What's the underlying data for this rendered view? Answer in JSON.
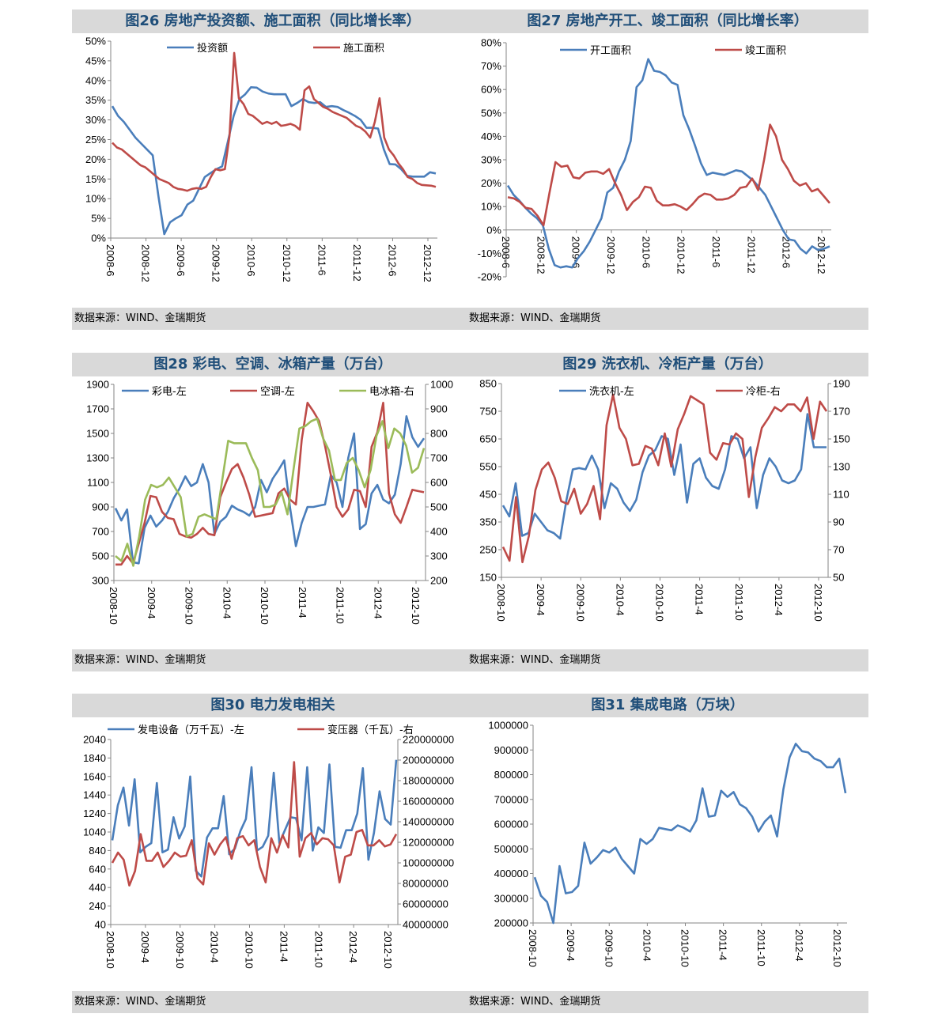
{
  "source_text": "数据来源：WIND、金瑞期货",
  "chart_data": [
    {
      "type": "line",
      "title": "图26 房地产投资额、施工面积（同比增长率）",
      "x_labels": [
        "2008-6",
        "2008-12",
        "2009-6",
        "2009-12",
        "2010-6",
        "2010-12",
        "2011-6",
        "2011-12",
        "2012-6",
        "2012-12"
      ],
      "y_ticks": [
        "0%",
        "5%",
        "10%",
        "15%",
        "20%",
        "25%",
        "30%",
        "35%",
        "40%",
        "45%",
        "50%"
      ],
      "ylim": [
        0,
        50
      ],
      "series": [
        {
          "name": "投资额",
          "color": "#4a7ebb",
          "axis": "left",
          "values": [
            33.5,
            31,
            29.5,
            27.5,
            25.5,
            24,
            22.5,
            21,
            10.5,
            1,
            4,
            5,
            5.8,
            8.5,
            9.5,
            12.5,
            15.5,
            16.5,
            17.5,
            18.2,
            24.5,
            31,
            35.3,
            36.5,
            38.3,
            38.2,
            37.2,
            36.7,
            36.5,
            36.5,
            36.5,
            33.5,
            34.3,
            35.3,
            34.5,
            34.3,
            34.5,
            33.3,
            33.5,
            33.3,
            32.5,
            31.8,
            31,
            30,
            28,
            28,
            27.8,
            22.5,
            18.8,
            18.7,
            17.5,
            15.8,
            15.6,
            15.6,
            15.6,
            16.7,
            16.4
          ]
        },
        {
          "name": "施工面积",
          "color": "#be4b48",
          "axis": "left",
          "values": [
            24.2,
            23,
            22.5,
            21.5,
            20.5,
            19.5,
            18.5,
            18,
            17,
            16,
            15,
            14.5,
            14,
            13,
            12.5,
            12.3,
            12,
            12.5,
            12.7,
            12.5,
            13,
            15.5,
            17.5,
            17.2,
            17.5,
            26,
            47,
            35.5,
            34,
            31.5,
            31,
            30,
            29,
            29.5,
            29,
            29.5,
            28.5,
            28.7,
            29,
            28.5,
            27.5,
            37.5,
            38.5,
            35.3,
            34.3,
            33.3,
            32.8,
            32,
            31.5,
            31,
            30.5,
            29.5,
            28.5,
            28,
            27,
            25.5,
            29.5,
            35.5,
            25.5,
            22.5,
            21,
            19,
            17.5,
            15.5,
            15,
            14,
            13.5,
            13.4,
            13.3,
            13
          ]
        }
      ],
      "legend_position": "top"
    },
    {
      "type": "line",
      "title": "图27 房地产开工、竣工面积（同比增长率）",
      "x_labels": [
        "2008-6",
        "2008-12",
        "2009-6",
        "2009-12",
        "2010-6",
        "2010-12",
        "2011-6",
        "2011-12",
        "2012-6",
        "2012-12"
      ],
      "y_ticks": [
        "-20%",
        "-10%",
        "0%",
        "10%",
        "20%",
        "30%",
        "40%",
        "50%",
        "60%",
        "70%",
        "80%"
      ],
      "ylim": [
        -20,
        80
      ],
      "series": [
        {
          "name": "开工面积",
          "color": "#4a7ebb",
          "axis": "left",
          "values": [
            19,
            15,
            12.5,
            9.5,
            7,
            5,
            2,
            -8,
            -15,
            -16,
            -15.5,
            -16,
            -12,
            -9,
            -5,
            0,
            5,
            16,
            18,
            25,
            30,
            38,
            61,
            64,
            73,
            68,
            67.5,
            66,
            63,
            62,
            49,
            43,
            36,
            28.5,
            23.5,
            24.5,
            24,
            23.5,
            24.5,
            25.5,
            25,
            23,
            21,
            18,
            15,
            10,
            5,
            0,
            -4,
            -4.5,
            -8,
            -10,
            -7,
            -8.5,
            -8,
            -7
          ]
        },
        {
          "name": "竣工面积",
          "color": "#be4b48",
          "axis": "left",
          "values": [
            14,
            13.5,
            12,
            9.5,
            9,
            6,
            2,
            16,
            29,
            27,
            27.5,
            22.5,
            22,
            24.5,
            25,
            25,
            24,
            26,
            20,
            15,
            8.5,
            12,
            14,
            18.5,
            18,
            12.5,
            10.5,
            10.5,
            11,
            10,
            8.5,
            11,
            14,
            15.5,
            15,
            13,
            13,
            13.5,
            15,
            18,
            18.5,
            22,
            17,
            30,
            45,
            40,
            30,
            26,
            21,
            19,
            20,
            16.5,
            17.5,
            14.5,
            11.5
          ]
        }
      ],
      "legend_position": "top"
    },
    {
      "type": "line",
      "title": "图28 彩电、空调、冰箱产量（万台）",
      "x_labels": [
        "2008-10",
        "2009-4",
        "2009-10",
        "2010-4",
        "2010-10",
        "2011-4",
        "2011-10",
        "2012-4",
        "2012-10"
      ],
      "y_ticks_left": [
        "300",
        "500",
        "700",
        "900",
        "1100",
        "1300",
        "1500",
        "1700",
        "1900"
      ],
      "y_ticks_right": [
        "200",
        "300",
        "400",
        "500",
        "600",
        "700",
        "800",
        "900",
        "1000"
      ],
      "ylim_left": [
        300,
        1900
      ],
      "ylim_right": [
        200,
        1000
      ],
      "series": [
        {
          "name": "彩电-左",
          "color": "#4a7ebb",
          "axis": "left",
          "values": [
            890,
            790,
            880,
            450,
            440,
            730,
            830,
            740,
            790,
            860,
            970,
            1050,
            1150,
            1070,
            1100,
            1250,
            1100,
            680,
            780,
            820,
            910,
            880,
            860,
            830,
            900,
            1120,
            1020,
            1130,
            1200,
            1280,
            890,
            580,
            770,
            900,
            900,
            910,
            920,
            1160,
            1100,
            900,
            1300,
            1500,
            720,
            760,
            1010,
            1080,
            960,
            930,
            1000,
            1250,
            1640,
            1470,
            1390,
            1460
          ]
        },
        {
          "name": "空调-左",
          "color": "#be4b48",
          "axis": "left",
          "values": [
            430,
            430,
            500,
            440,
            600,
            770,
            990,
            980,
            860,
            810,
            800,
            680,
            660,
            650,
            680,
            730,
            680,
            670,
            980,
            1100,
            1210,
            1250,
            1140,
            1000,
            820,
            830,
            840,
            850,
            1010,
            1050,
            960,
            920,
            1450,
            1750,
            1680,
            1600,
            1400,
            1160,
            900,
            820,
            880,
            1040,
            1030,
            900,
            1390,
            1510,
            1750,
            1010,
            840,
            770,
            900,
            1040,
            1030,
            1020
          ]
        },
        {
          "name": "电冰箱-右",
          "color": "#9bbb59",
          "axis": "right",
          "values": [
            300,
            280,
            350,
            260,
            380,
            530,
            590,
            580,
            590,
            620,
            580,
            540,
            380,
            390,
            460,
            470,
            460,
            450,
            610,
            770,
            760,
            760,
            760,
            700,
            650,
            500,
            500,
            510,
            560,
            470,
            650,
            820,
            830,
            850,
            860,
            780,
            730,
            610,
            610,
            680,
            700,
            650,
            580,
            650,
            790,
            850,
            740,
            820,
            800,
            750,
            640,
            660,
            740
          ]
        }
      ],
      "legend_position": "top"
    },
    {
      "type": "line",
      "title": "图29 洗衣机、冷柜产量（万台）",
      "x_labels": [
        "2008-10",
        "2009-4",
        "2009-10",
        "2010-4",
        "2010-10",
        "2011-4",
        "2011-10",
        "2012-4",
        "2012-10"
      ],
      "y_ticks_left": [
        "150",
        "250",
        "350",
        "450",
        "550",
        "650",
        "750",
        "850"
      ],
      "y_ticks_right": [
        "50",
        "70",
        "90",
        "110",
        "130",
        "150",
        "170",
        "190"
      ],
      "ylim_left": [
        150,
        850
      ],
      "ylim_right": [
        50,
        190
      ],
      "series": [
        {
          "name": "洗衣机-左",
          "color": "#4a7ebb",
          "axis": "left",
          "values": [
            410,
            370,
            490,
            300,
            310,
            380,
            350,
            320,
            310,
            290,
            430,
            540,
            545,
            540,
            590,
            540,
            400,
            490,
            470,
            420,
            390,
            430,
            530,
            590,
            610,
            660,
            650,
            520,
            630,
            420,
            560,
            580,
            510,
            480,
            470,
            540,
            660,
            650,
            580,
            620,
            400,
            520,
            580,
            550,
            500,
            490,
            500,
            540,
            740,
            620,
            620,
            620
          ]
        },
        {
          "name": "冷柜-右",
          "color": "#be4b48",
          "axis": "right",
          "values": [
            72,
            62,
            108,
            61,
            80,
            113,
            128,
            133,
            122,
            105,
            103,
            114,
            96,
            103,
            116,
            92,
            160,
            182,
            158,
            150,
            131,
            132,
            145,
            143,
            131,
            154,
            130,
            157,
            168,
            181,
            178,
            175,
            140,
            135,
            147,
            146,
            154,
            150,
            108,
            137,
            158,
            165,
            173,
            170,
            175,
            175,
            170,
            180,
            150,
            177,
            170
          ]
        }
      ],
      "legend_position": "top"
    },
    {
      "type": "line",
      "title": "图30 电力发电相关",
      "x_labels": [
        "2008-10",
        "2009-4",
        "2009-10",
        "2010-4",
        "2010-10",
        "2011-4",
        "2011-10",
        "2012-4",
        "2012-10"
      ],
      "y_ticks_left": [
        "40",
        "240",
        "440",
        "640",
        "840",
        "1040",
        "1240",
        "1440",
        "1640",
        "1840",
        "2040"
      ],
      "y_ticks_right": [
        "40000000",
        "60000000",
        "80000000",
        "100000000",
        "120000000",
        "140000000",
        "160000000",
        "180000000",
        "200000000",
        "220000000"
      ],
      "ylim_left": [
        40,
        2040
      ],
      "ylim_right": [
        40000000,
        220000000
      ],
      "series": [
        {
          "name": "发电设备（万千瓦）-左",
          "color": "#4a7ebb",
          "axis": "left",
          "values": [
            950,
            1330,
            1520,
            1110,
            1610,
            820,
            880,
            920,
            1570,
            820,
            850,
            1200,
            970,
            1100,
            1640,
            620,
            560,
            980,
            1080,
            1080,
            1430,
            800,
            860,
            1050,
            1180,
            1740,
            840,
            880,
            1000,
            1680,
            920,
            1060,
            1200,
            1190,
            950,
            1740,
            840,
            1090,
            1030,
            1770,
            880,
            870,
            1060,
            1060,
            1240,
            1730,
            740,
            1030,
            1480,
            1180,
            1120,
            1820
          ]
        },
        {
          "name": "变压器（千瓦）-右",
          "color": "#be4b48",
          "axis": "right",
          "values": [
            100000000,
            110000000,
            103000000,
            78000000,
            92000000,
            128000000,
            102000000,
            102000000,
            110000000,
            96000000,
            102000000,
            110000000,
            106000000,
            107000000,
            122000000,
            85000000,
            79000000,
            119000000,
            108000000,
            118000000,
            125000000,
            104000000,
            124000000,
            126000000,
            117000000,
            122000000,
            96000000,
            81000000,
            124000000,
            110000000,
            127000000,
            115000000,
            198000000,
            106000000,
            124000000,
            129000000,
            118000000,
            124000000,
            123000000,
            117000000,
            81000000,
            106000000,
            108000000,
            130000000,
            132000000,
            117000000,
            117000000,
            122000000,
            116000000,
            118000000,
            128000000
          ]
        }
      ],
      "legend_position": "top"
    },
    {
      "type": "line",
      "title": "图31 集成电路（万块）",
      "x_labels": [
        "2008-10",
        "2009-4",
        "2009-10",
        "2010-4",
        "2010-10",
        "2011-4",
        "2011-10",
        "2012-4",
        "2012-10"
      ],
      "y_ticks": [
        "200000",
        "300000",
        "400000",
        "500000",
        "600000",
        "700000",
        "800000",
        "900000",
        "1000000"
      ],
      "ylim": [
        200000,
        1000000
      ],
      "series": [
        {
          "name": "",
          "color": "#4a7ebb",
          "axis": "left",
          "values": [
            385000,
            310000,
            285000,
            200000,
            430000,
            320000,
            325000,
            350000,
            525000,
            440000,
            465000,
            495000,
            485000,
            505000,
            460000,
            430000,
            400000,
            540000,
            520000,
            540000,
            585000,
            580000,
            575000,
            595000,
            585000,
            570000,
            615000,
            745000,
            630000,
            635000,
            735000,
            710000,
            730000,
            680000,
            665000,
            630000,
            570000,
            610000,
            635000,
            550000,
            740000,
            870000,
            925000,
            895000,
            890000,
            865000,
            855000,
            830000,
            830000,
            865000,
            725000
          ]
        }
      ]
    }
  ]
}
